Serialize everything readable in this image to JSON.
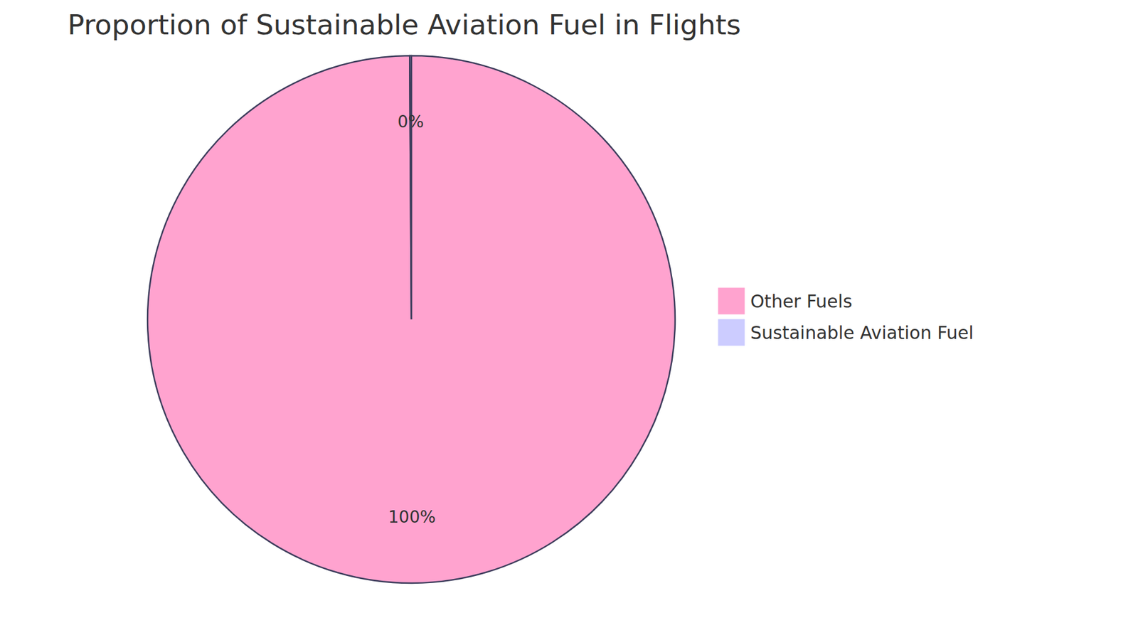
{
  "chart_data": {
    "type": "pie",
    "title": "Proportion of Sustainable Aviation Fuel in Flights",
    "categories": [
      "Other Fuels",
      "Sustainable Aviation Fuel"
    ],
    "values": [
      99.9,
      0.1
    ],
    "value_labels": [
      "100%",
      "0%"
    ],
    "colors": [
      "#ffa3cf",
      "#ccccff"
    ],
    "data_labels": true,
    "legend": "right"
  }
}
